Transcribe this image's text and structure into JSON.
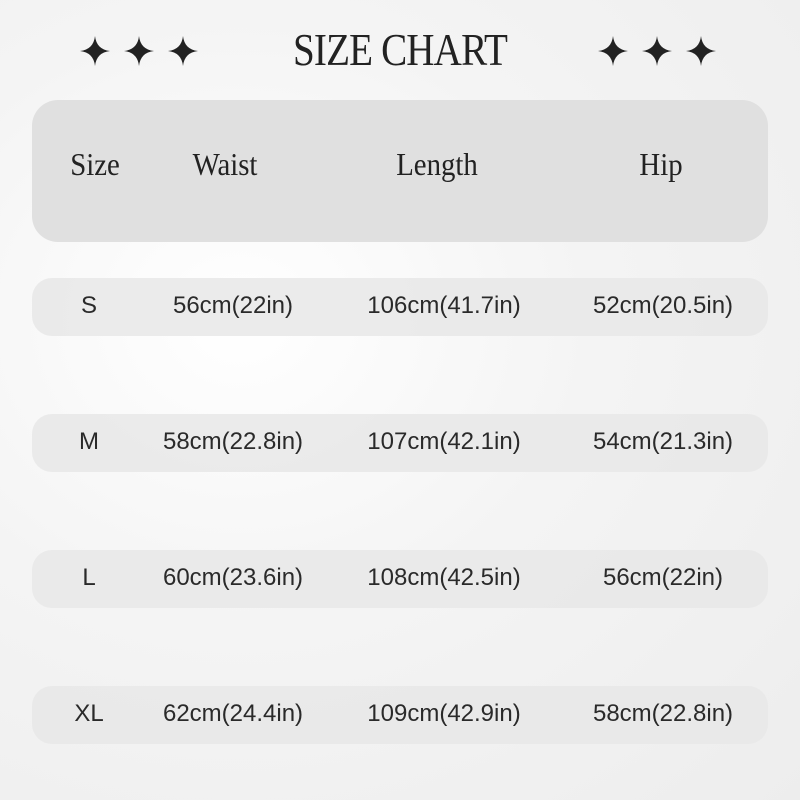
{
  "title": "SIZE CHART",
  "decoration_icon": "four-point-star-icon",
  "colors": {
    "header_bg": "#e0e0e0",
    "row_bg": "#e8e8e8",
    "text": "#222222"
  },
  "columns": [
    "Size",
    "Waist",
    "Length",
    "Hip"
  ],
  "rows": [
    [
      "S",
      "56cm(22in)",
      "106cm(41.7in)",
      "52cm(20.5in)"
    ],
    [
      "M",
      "58cm(22.8in)",
      "107cm(42.1in)",
      "54cm(21.3in)"
    ],
    [
      "L",
      "60cm(23.6in)",
      "108cm(42.5in)",
      "56cm(22in)"
    ],
    [
      "XL",
      "62cm(24.4in)",
      "109cm(42.9in)",
      "58cm(22.8in)"
    ]
  ]
}
